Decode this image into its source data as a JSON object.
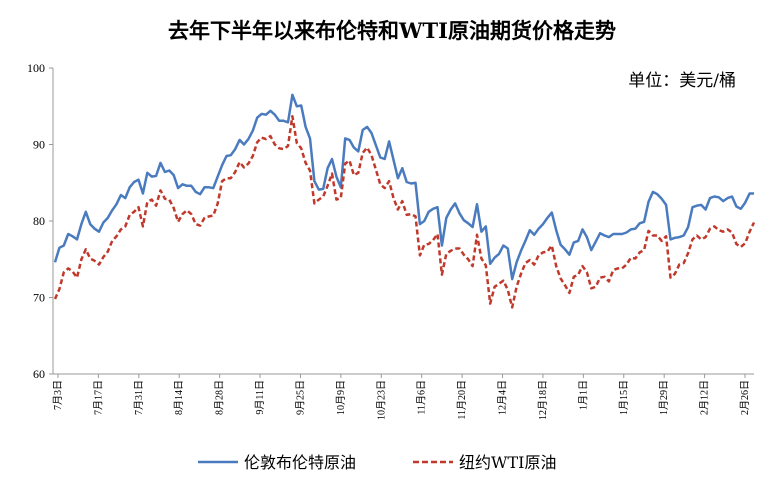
{
  "chart_data": {
    "type": "line",
    "title": "去年下半年以来布伦特和WTI原油期货价格走势",
    "unit": "单位：美元/桶",
    "ylim": [
      60,
      100
    ],
    "yticks": [
      "60",
      "70",
      "80",
      "90",
      "100"
    ],
    "xlabels": [
      "7月3日",
      "7月17日",
      "7月31日",
      "8月14日",
      "8月28日",
      "9月11日",
      "9月25日",
      "10月9日",
      "10月23日",
      "11月6日",
      "11月20日",
      "12月4日",
      "12月18日",
      "1月1日",
      "1月15日",
      "1月29日",
      "2月12日",
      "2月26日"
    ],
    "grid": false,
    "legend": "bottom",
    "colors": {
      "brent": "#4a7bbf",
      "wti": "#c0392b"
    },
    "series": [
      {
        "name": "伦敦布伦特原油",
        "style": "solid",
        "values": [
          74.6,
          76.5,
          76.8,
          78.3,
          78.0,
          77.6,
          79.6,
          81.2,
          79.6,
          79.0,
          78.6,
          79.8,
          80.4,
          81.4,
          82.2,
          83.4,
          83.0,
          84.4,
          85.1,
          85.4,
          83.6,
          86.3,
          85.8,
          85.9,
          87.6,
          86.4,
          86.6,
          86.0,
          84.3,
          84.8,
          84.6,
          84.6,
          83.8,
          83.5,
          84.4,
          84.4,
          84.3,
          85.8,
          87.3,
          88.5,
          88.6,
          89.4,
          90.6,
          90.0,
          90.7,
          91.8,
          93.5,
          94.0,
          93.9,
          94.4,
          93.9,
          93.1,
          93.1,
          92.9,
          96.5,
          95.0,
          95.1,
          92.3,
          90.8,
          85.2,
          84.1,
          84.2,
          86.9,
          88.1,
          85.8,
          84.4,
          90.8,
          90.6,
          89.6,
          89.1,
          91.9,
          92.3,
          91.5,
          89.9,
          88.3,
          88.1,
          90.4,
          88.0,
          85.6,
          86.9,
          85.1,
          84.9,
          85.0,
          79.6,
          80.0,
          81.2,
          81.6,
          81.8,
          76.8,
          80.4,
          81.5,
          82.3,
          81.0,
          80.1,
          79.7,
          79.2,
          82.2,
          78.6,
          79.3,
          74.4,
          75.2,
          75.7,
          76.8,
          76.4,
          72.4,
          74.6,
          76.1,
          77.4,
          78.8,
          78.2,
          79.0,
          79.6,
          80.4,
          81.1,
          78.8,
          76.9,
          76.3,
          75.6,
          77.2,
          77.4,
          78.9,
          77.9,
          76.2,
          77.3,
          78.4,
          78.1,
          77.9,
          78.3,
          78.3,
          78.3,
          78.5,
          78.9,
          79.0,
          79.7,
          79.9,
          82.5,
          83.8,
          83.5,
          82.9,
          82.1,
          77.6,
          77.8,
          77.9,
          78.1,
          79.2,
          81.8,
          82.0,
          82.1,
          81.5,
          83.0,
          83.2,
          83.1,
          82.6,
          83.0,
          83.2,
          81.9,
          81.6,
          82.4,
          83.6,
          83.6
        ]
      },
      {
        "name": "纽约WTI原油",
        "style": "dashed",
        "values": [
          69.8,
          71.1,
          73.3,
          73.8,
          73.4,
          72.6,
          75.0,
          76.3,
          75.1,
          74.8,
          74.3,
          75.3,
          76.0,
          77.4,
          78.0,
          78.9,
          79.3,
          80.8,
          81.2,
          81.8,
          79.3,
          82.5,
          82.8,
          82.0,
          84.0,
          82.9,
          82.8,
          81.7,
          79.9,
          80.9,
          81.4,
          80.9,
          79.6,
          79.4,
          80.4,
          80.6,
          80.7,
          82.3,
          85.2,
          85.6,
          85.6,
          86.4,
          87.7,
          87.0,
          87.5,
          88.5,
          90.3,
          90.9,
          90.7,
          91.1,
          90.0,
          89.5,
          89.4,
          89.8,
          93.7,
          90.2,
          89.5,
          87.6,
          86.6,
          82.3,
          82.8,
          83.2,
          84.6,
          86.2,
          82.8,
          83.0,
          87.5,
          87.9,
          86.0,
          86.3,
          88.9,
          89.6,
          88.6,
          86.7,
          84.8,
          84.3,
          85.2,
          83.0,
          81.5,
          82.6,
          80.8,
          80.9,
          80.6,
          75.5,
          76.9,
          77.0,
          77.5,
          78.3,
          73.0,
          75.7,
          76.1,
          76.4,
          76.4,
          75.6,
          75.0,
          74.1,
          78.2,
          75.1,
          74.2,
          69.2,
          71.4,
          71.8,
          72.2,
          71.0,
          68.7,
          71.4,
          73.1,
          74.5,
          74.9,
          74.3,
          75.5,
          75.9,
          76.0,
          76.8,
          74.1,
          72.5,
          71.6,
          70.6,
          72.7,
          73.0,
          74.1,
          73.3,
          71.2,
          71.4,
          72.6,
          72.7,
          72.1,
          73.6,
          73.8,
          73.8,
          74.3,
          75.2,
          75.1,
          75.9,
          76.2,
          78.7,
          78.1,
          78.1,
          77.4,
          78.0,
          72.6,
          73.1,
          74.3,
          74.5,
          75.8,
          77.6,
          78.1,
          77.6,
          77.9,
          79.0,
          79.3,
          78.8,
          78.6,
          78.9,
          78.5,
          77.0,
          76.6,
          77.1,
          78.6,
          79.8
        ]
      }
    ]
  }
}
